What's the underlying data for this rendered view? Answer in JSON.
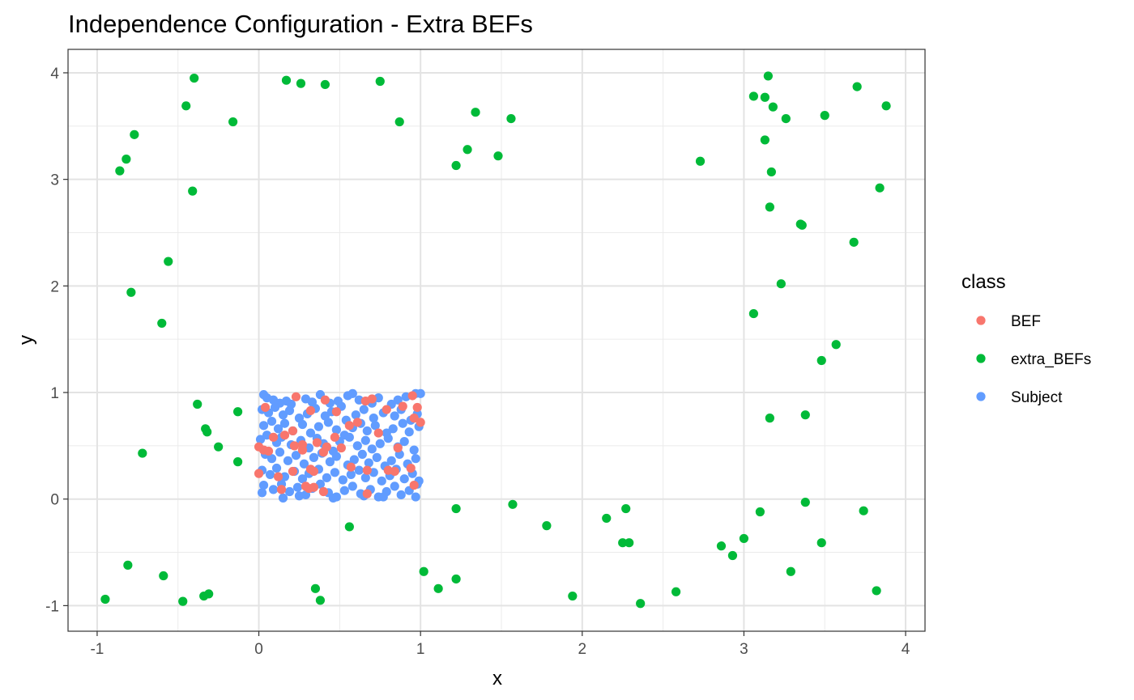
{
  "chart_data": {
    "type": "scatter",
    "title": "Independence Configuration - Extra BEFs",
    "xlabel": "x",
    "ylabel": "y",
    "xlim": [
      -1.18,
      4.12
    ],
    "ylim": [
      -1.24,
      4.22
    ],
    "x_ticks": [
      -1,
      0,
      1,
      2,
      3,
      4
    ],
    "y_ticks": [
      -1,
      0,
      1,
      2,
      3,
      4
    ],
    "x_tick_labels": [
      "-1",
      "0",
      "1",
      "2",
      "3",
      "4"
    ],
    "y_tick_labels": [
      "-1",
      "0",
      "1",
      "2",
      "3",
      "4"
    ],
    "grid": true,
    "legend": {
      "title": "class",
      "position": "right",
      "entries": [
        "BEF",
        "extra_BEFs",
        "Subject"
      ]
    },
    "series": [
      {
        "name": "Subject",
        "color": "#619CFF",
        "points": [
          [
            0.03,
            0.98
          ],
          [
            0.05,
            0.95
          ],
          [
            0.09,
            0.93
          ],
          [
            0.13,
            0.9
          ],
          [
            0.17,
            0.92
          ],
          [
            0.2,
            0.89
          ],
          [
            0.29,
            0.94
          ],
          [
            0.33,
            0.91
          ],
          [
            0.38,
            0.98
          ],
          [
            0.44,
            0.9
          ],
          [
            0.49,
            0.92
          ],
          [
            0.55,
            0.97
          ],
          [
            0.58,
            0.99
          ],
          [
            0.62,
            0.93
          ],
          [
            0.7,
            0.9
          ],
          [
            0.74,
            0.95
          ],
          [
            0.82,
            0.89
          ],
          [
            0.86,
            0.93
          ],
          [
            0.91,
            0.96
          ],
          [
            0.97,
            0.99
          ],
          [
            1.0,
            0.99
          ],
          [
            0.02,
            0.84
          ],
          [
            0.06,
            0.81
          ],
          [
            0.1,
            0.86
          ],
          [
            0.15,
            0.79
          ],
          [
            0.19,
            0.83
          ],
          [
            0.25,
            0.76
          ],
          [
            0.3,
            0.8
          ],
          [
            0.35,
            0.85
          ],
          [
            0.41,
            0.78
          ],
          [
            0.45,
            0.82
          ],
          [
            0.51,
            0.87
          ],
          [
            0.54,
            0.74
          ],
          [
            0.6,
            0.79
          ],
          [
            0.65,
            0.84
          ],
          [
            0.71,
            0.76
          ],
          [
            0.77,
            0.81
          ],
          [
            0.84,
            0.78
          ],
          [
            0.88,
            0.84
          ],
          [
            0.94,
            0.74
          ],
          [
            0.98,
            0.8
          ],
          [
            0.03,
            0.69
          ],
          [
            0.08,
            0.73
          ],
          [
            0.12,
            0.66
          ],
          [
            0.16,
            0.71
          ],
          [
            0.21,
            0.64
          ],
          [
            0.27,
            0.7
          ],
          [
            0.32,
            0.62
          ],
          [
            0.37,
            0.68
          ],
          [
            0.43,
            0.72
          ],
          [
            0.48,
            0.65
          ],
          [
            0.53,
            0.6
          ],
          [
            0.58,
            0.67
          ],
          [
            0.63,
            0.71
          ],
          [
            0.67,
            0.64
          ],
          [
            0.72,
            0.69
          ],
          [
            0.79,
            0.62
          ],
          [
            0.83,
            0.66
          ],
          [
            0.89,
            0.71
          ],
          [
            0.93,
            0.63
          ],
          [
            0.99,
            0.68
          ],
          [
            0.01,
            0.56
          ],
          [
            0.05,
            0.6
          ],
          [
            0.11,
            0.53
          ],
          [
            0.14,
            0.58
          ],
          [
            0.2,
            0.51
          ],
          [
            0.26,
            0.55
          ],
          [
            0.31,
            0.48
          ],
          [
            0.36,
            0.57
          ],
          [
            0.4,
            0.52
          ],
          [
            0.46,
            0.45
          ],
          [
            0.5,
            0.54
          ],
          [
            0.56,
            0.58
          ],
          [
            0.61,
            0.5
          ],
          [
            0.66,
            0.55
          ],
          [
            0.7,
            0.47
          ],
          [
            0.75,
            0.52
          ],
          [
            0.8,
            0.57
          ],
          [
            0.86,
            0.49
          ],
          [
            0.9,
            0.54
          ],
          [
            0.96,
            0.46
          ],
          [
            0.04,
            0.42
          ],
          [
            0.08,
            0.38
          ],
          [
            0.13,
            0.44
          ],
          [
            0.18,
            0.36
          ],
          [
            0.23,
            0.41
          ],
          [
            0.28,
            0.33
          ],
          [
            0.34,
            0.39
          ],
          [
            0.39,
            0.43
          ],
          [
            0.44,
            0.35
          ],
          [
            0.48,
            0.4
          ],
          [
            0.55,
            0.32
          ],
          [
            0.59,
            0.37
          ],
          [
            0.64,
            0.42
          ],
          [
            0.68,
            0.34
          ],
          [
            0.73,
            0.39
          ],
          [
            0.78,
            0.31
          ],
          [
            0.82,
            0.36
          ],
          [
            0.87,
            0.42
          ],
          [
            0.92,
            0.33
          ],
          [
            0.97,
            0.38
          ],
          [
            0.02,
            0.27
          ],
          [
            0.07,
            0.23
          ],
          [
            0.11,
            0.29
          ],
          [
            0.16,
            0.21
          ],
          [
            0.22,
            0.26
          ],
          [
            0.27,
            0.19
          ],
          [
            0.31,
            0.24
          ],
          [
            0.37,
            0.28
          ],
          [
            0.42,
            0.2
          ],
          [
            0.47,
            0.25
          ],
          [
            0.52,
            0.18
          ],
          [
            0.57,
            0.23
          ],
          [
            0.62,
            0.27
          ],
          [
            0.66,
            0.2
          ],
          [
            0.71,
            0.25
          ],
          [
            0.76,
            0.17
          ],
          [
            0.81,
            0.22
          ],
          [
            0.85,
            0.28
          ],
          [
            0.9,
            0.19
          ],
          [
            0.95,
            0.24
          ],
          [
            0.99,
            0.17
          ],
          [
            0.03,
            0.13
          ],
          [
            0.09,
            0.09
          ],
          [
            0.14,
            0.14
          ],
          [
            0.19,
            0.07
          ],
          [
            0.24,
            0.11
          ],
          [
            0.29,
            0.04
          ],
          [
            0.33,
            0.1
          ],
          [
            0.38,
            0.14
          ],
          [
            0.43,
            0.06
          ],
          [
            0.48,
            0.02
          ],
          [
            0.53,
            0.08
          ],
          [
            0.58,
            0.12
          ],
          [
            0.63,
            0.05
          ],
          [
            0.69,
            0.09
          ],
          [
            0.74,
            0.02
          ],
          [
            0.79,
            0.07
          ],
          [
            0.84,
            0.12
          ],
          [
            0.88,
            0.04
          ],
          [
            0.93,
            0.08
          ],
          [
            0.98,
            0.14
          ],
          [
            0.02,
            0.06
          ],
          [
            0.15,
            0.01
          ],
          [
            0.46,
            0.01
          ],
          [
            0.65,
            0.03
          ],
          [
            0.77,
            0.02
          ],
          [
            0.97,
            0.02
          ],
          [
            0.25,
            0.03
          ]
        ]
      },
      {
        "name": "BEF",
        "color": "#F8766D",
        "points": [
          [
            0.04,
            0.86
          ],
          [
            0.23,
            0.96
          ],
          [
            0.41,
            0.93
          ],
          [
            0.66,
            0.92
          ],
          [
            0.7,
            0.94
          ],
          [
            0.89,
            0.87
          ],
          [
            0.95,
            0.97
          ],
          [
            0.98,
            0.86
          ],
          [
            0.32,
            0.83
          ],
          [
            0.48,
            0.82
          ],
          [
            0.79,
            0.84
          ],
          [
            0.96,
            0.76
          ],
          [
            1.0,
            0.72
          ],
          [
            0.09,
            0.58
          ],
          [
            0.16,
            0.6
          ],
          [
            0.21,
            0.64
          ],
          [
            0.27,
            0.51
          ],
          [
            0.36,
            0.53
          ],
          [
            0.42,
            0.49
          ],
          [
            0.47,
            0.58
          ],
          [
            0.56,
            0.69
          ],
          [
            0.61,
            0.72
          ],
          [
            0.74,
            0.62
          ],
          [
            0.86,
            0.48
          ],
          [
            0.0,
            0.49
          ],
          [
            0.03,
            0.46
          ],
          [
            0.06,
            0.45
          ],
          [
            0.22,
            0.5
          ],
          [
            0.27,
            0.46
          ],
          [
            0.4,
            0.44
          ],
          [
            0.51,
            0.48
          ],
          [
            0.57,
            0.3
          ],
          [
            0.32,
            0.28
          ],
          [
            0.34,
            0.26
          ],
          [
            0.67,
            0.27
          ],
          [
            0.8,
            0.27
          ],
          [
            0.84,
            0.26
          ],
          [
            0.94,
            0.29
          ],
          [
            0.0,
            0.24
          ],
          [
            0.12,
            0.21
          ],
          [
            0.21,
            0.26
          ],
          [
            0.31,
            0.1
          ],
          [
            0.34,
            0.11
          ],
          [
            0.4,
            0.07
          ],
          [
            0.67,
            0.05
          ],
          [
            0.96,
            0.13
          ],
          [
            0.14,
            0.09
          ],
          [
            0.29,
            0.12
          ]
        ]
      },
      {
        "name": "extra_BEFs",
        "color": "#00BA38",
        "points": [
          [
            -0.4,
            3.95
          ],
          [
            0.17,
            3.93
          ],
          [
            0.26,
            3.9
          ],
          [
            0.41,
            3.89
          ],
          [
            0.75,
            3.92
          ],
          [
            -0.45,
            3.69
          ],
          [
            -0.16,
            3.54
          ],
          [
            0.87,
            3.54
          ],
          [
            1.34,
            3.63
          ],
          [
            1.56,
            3.57
          ],
          [
            -0.77,
            3.42
          ],
          [
            -0.82,
            3.19
          ],
          [
            -0.86,
            3.08
          ],
          [
            1.29,
            3.28
          ],
          [
            1.48,
            3.22
          ],
          [
            1.22,
            3.13
          ],
          [
            -0.41,
            2.89
          ],
          [
            -0.56,
            2.23
          ],
          [
            -0.79,
            1.94
          ],
          [
            -0.6,
            1.65
          ],
          [
            3.15,
            3.97
          ],
          [
            3.06,
            3.78
          ],
          [
            3.13,
            3.77
          ],
          [
            3.18,
            3.68
          ],
          [
            3.26,
            3.57
          ],
          [
            3.5,
            3.6
          ],
          [
            3.7,
            3.87
          ],
          [
            3.88,
            3.69
          ],
          [
            2.73,
            3.17
          ],
          [
            3.13,
            3.37
          ],
          [
            3.17,
            3.07
          ],
          [
            3.84,
            2.92
          ],
          [
            3.16,
            2.74
          ],
          [
            3.35,
            2.58
          ],
          [
            3.36,
            2.57
          ],
          [
            3.68,
            2.41
          ],
          [
            3.23,
            2.02
          ],
          [
            3.06,
            1.74
          ],
          [
            3.57,
            1.45
          ],
          [
            3.48,
            1.3
          ],
          [
            3.16,
            0.76
          ],
          [
            3.38,
            0.79
          ],
          [
            -0.38,
            0.89
          ],
          [
            -0.13,
            0.82
          ],
          [
            -0.33,
            0.66
          ],
          [
            -0.32,
            0.63
          ],
          [
            -0.25,
            0.49
          ],
          [
            -0.72,
            0.43
          ],
          [
            -0.13,
            0.35
          ],
          [
            0.56,
            -0.26
          ],
          [
            1.22,
            -0.09
          ],
          [
            1.57,
            -0.05
          ],
          [
            1.78,
            -0.25
          ],
          [
            2.15,
            -0.18
          ],
          [
            2.27,
            -0.09
          ],
          [
            2.25,
            -0.41
          ],
          [
            2.29,
            -0.41
          ],
          [
            3.1,
            -0.12
          ],
          [
            3.38,
            -0.03
          ],
          [
            3.74,
            -0.11
          ],
          [
            3.0,
            -0.37
          ],
          [
            2.86,
            -0.44
          ],
          [
            2.93,
            -0.53
          ],
          [
            3.48,
            -0.41
          ],
          [
            3.29,
            -0.68
          ],
          [
            3.82,
            -0.86
          ],
          [
            -0.81,
            -0.62
          ],
          [
            -0.59,
            -0.72
          ],
          [
            -0.95,
            -0.94
          ],
          [
            -0.47,
            -0.96
          ],
          [
            -0.34,
            -0.91
          ],
          [
            -0.31,
            -0.89
          ],
          [
            0.35,
            -0.84
          ],
          [
            0.38,
            -0.95
          ],
          [
            1.02,
            -0.68
          ],
          [
            1.11,
            -0.84
          ],
          [
            1.22,
            -0.75
          ],
          [
            1.94,
            -0.91
          ],
          [
            2.36,
            -0.98
          ],
          [
            2.58,
            -0.87
          ]
        ]
      }
    ]
  }
}
